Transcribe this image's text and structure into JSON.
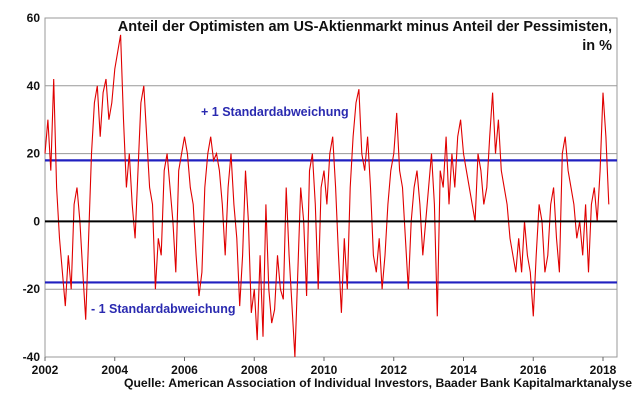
{
  "chart_data": {
    "type": "line",
    "title_line1": "Anteil der Optimisten am US-Aktienmarkt minus Anteil der Pessimisten,",
    "title_line2": "in %",
    "xlabel": "",
    "ylabel": "",
    "xlim": [
      2002,
      2018.4
    ],
    "ylim": [
      -40,
      60
    ],
    "x_ticks": [
      "2002",
      "2004",
      "2006",
      "2008",
      "2010",
      "2012",
      "2014",
      "2016",
      "2018"
    ],
    "y_ticks": [
      "60",
      "40",
      "20",
      "0",
      "-20",
      "-40"
    ],
    "grid": true,
    "zero_line_color": "#000000",
    "series_color": "#e00000",
    "sd_color": "#2020c0",
    "reference_lines": [
      {
        "label": "+ 1 Standardabweichung",
        "value": 18
      },
      {
        "label": "- 1 Standardabweichung",
        "value": -18
      }
    ],
    "source": "Quelle: American Association of Individual Investors, Baader Bank Kapitalmarktanalyse",
    "monthly_values_by_year": {
      "2002": [
        20,
        30,
        15,
        42,
        10,
        -5,
        -15,
        -25,
        -10,
        -20,
        5,
        10
      ],
      "2003": [
        0,
        -15,
        -29,
        -5,
        20,
        35,
        40,
        25,
        38,
        42,
        30,
        35
      ],
      "2004": [
        45,
        50,
        55,
        30,
        10,
        20,
        5,
        -5,
        15,
        35,
        40,
        25
      ],
      "2005": [
        10,
        5,
        -20,
        -5,
        -10,
        15,
        20,
        10,
        0,
        -15,
        15,
        20
      ],
      "2006": [
        25,
        20,
        10,
        5,
        -10,
        -22,
        -15,
        10,
        20,
        25,
        18,
        20
      ],
      "2007": [
        15,
        5,
        -10,
        10,
        20,
        5,
        -5,
        -25,
        -10,
        15,
        0,
        -27
      ],
      "2008": [
        -20,
        -35,
        -10,
        -34,
        5,
        -20,
        -30,
        -26,
        -10,
        -20,
        -23,
        10
      ],
      "2009": [
        -10,
        -25,
        -40,
        -15,
        10,
        0,
        -22,
        15,
        20,
        5,
        -20,
        10
      ],
      "2010": [
        15,
        5,
        20,
        25,
        10,
        -10,
        -27,
        -5,
        -20,
        10,
        25,
        35
      ],
      "2011": [
        39,
        20,
        15,
        25,
        10,
        -10,
        -15,
        -5,
        -20,
        -10,
        5,
        15
      ],
      "2012": [
        20,
        32,
        15,
        10,
        -5,
        -20,
        0,
        10,
        15,
        5,
        -10,
        0
      ],
      "2013": [
        10,
        20,
        5,
        -28,
        15,
        10,
        25,
        5,
        20,
        10,
        25,
        30
      ],
      "2014": [
        20,
        15,
        10,
        5,
        0,
        20,
        15,
        5,
        10,
        25,
        38,
        20
      ],
      "2015": [
        30,
        15,
        10,
        5,
        -5,
        -10,
        -15,
        -5,
        -15,
        0,
        -10,
        -15
      ],
      "2016": [
        -28,
        -10,
        5,
        0,
        -15,
        -10,
        5,
        10,
        -5,
        -15,
        20,
        25
      ],
      "2017": [
        15,
        10,
        5,
        -5,
        0,
        -10,
        5,
        -15,
        5,
        10,
        0,
        15
      ],
      "2018": [
        38,
        25,
        5
      ]
    }
  }
}
